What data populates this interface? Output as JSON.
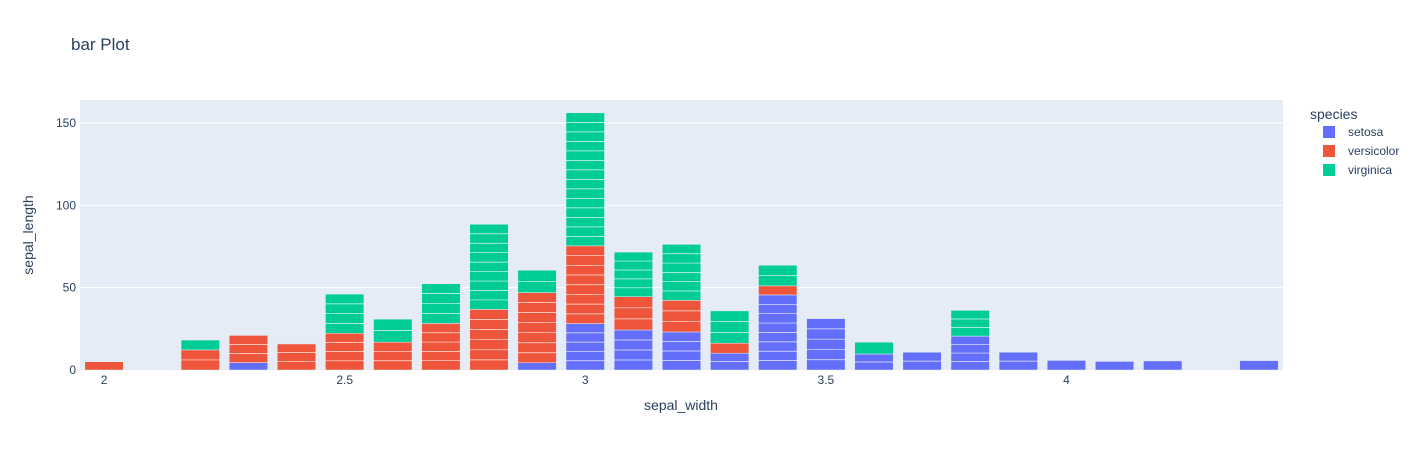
{
  "chart_data": {
    "type": "bar",
    "barmode": "stack",
    "title": "bar Plot",
    "xlabel": "sepal_width",
    "ylabel": "sepal_length",
    "x": [
      2.0,
      2.2,
      2.3,
      2.4,
      2.5,
      2.6,
      2.7,
      2.8,
      2.9,
      3.0,
      3.1,
      3.2,
      3.3,
      3.4,
      3.5,
      3.6,
      3.7,
      3.8,
      3.9,
      4.0,
      4.1,
      4.2,
      4.4
    ],
    "xlim": [
      1.95,
      4.45
    ],
    "ylim": [
      0,
      164
    ],
    "x_ticks": [
      2,
      2.5,
      3,
      3.5,
      4
    ],
    "x_tick_labels": [
      "2",
      "2.5",
      "3",
      "3.5",
      "4"
    ],
    "y_ticks": [
      0,
      50,
      100,
      150
    ],
    "y_tick_labels": [
      "0",
      "50",
      "100",
      "150"
    ],
    "grid": true,
    "legend": {
      "title": "species",
      "placement": "right"
    },
    "series": [
      {
        "name": "setosa",
        "color": "#636efa",
        "values": [
          0,
          0,
          4.5,
          0,
          0,
          0,
          0,
          0,
          4.4,
          28.2,
          24.3,
          23.1,
          10.2,
          45.6,
          31.2,
          9.7,
          10.8,
          20.6,
          10.8,
          5.8,
          5.2,
          5.5,
          5.7
        ]
      },
      {
        "name": "versicolor",
        "color": "#ef553b",
        "values": [
          5.0,
          12.2,
          16.5,
          15.8,
          22.3,
          16.9,
          28.3,
          36.8,
          42.6,
          47.2,
          20.2,
          19.2,
          6.1,
          5.5,
          0,
          0,
          0,
          0,
          0,
          0,
          0,
          0,
          0
        ]
      },
      {
        "name": "virginica",
        "color": "#00cc96",
        "values": [
          0,
          6.0,
          0,
          0,
          23.8,
          14.0,
          24.1,
          51.7,
          13.6,
          80.8,
          27.1,
          34.0,
          19.6,
          12.5,
          0,
          7.2,
          0,
          15.6,
          0,
          0,
          0,
          0,
          0
        ]
      }
    ]
  }
}
